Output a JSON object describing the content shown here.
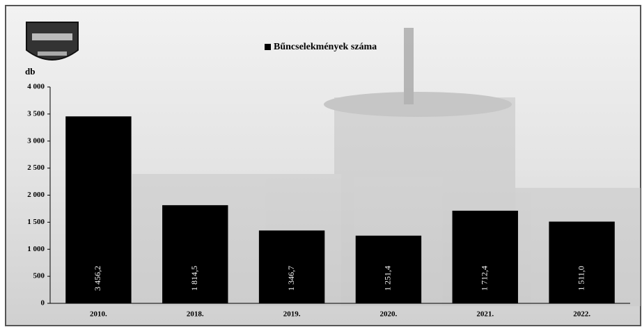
{
  "chart_data": {
    "type": "bar",
    "y_label": "db",
    "categories": [
      "2010.",
      "2018.",
      "2019.",
      "2020.",
      "2021.",
      "2022."
    ],
    "series": [
      {
        "name": "Bűncselekmények száma",
        "color": "#000000",
        "values": [
          3456.2,
          1814.5,
          1346.7,
          1251.4,
          1712.4,
          1511.0
        ],
        "value_labels": [
          "3 456,2",
          "1 814,5",
          "1 346,7",
          "1 251,4",
          "1 712,4",
          "1 511,0"
        ]
      }
    ],
    "ylim": [
      0,
      4000
    ],
    "yticks": [
      0,
      500,
      {
        "value": 1000,
        "label": "1 000"
      },
      {
        "value": 1500,
        "label": "1 500"
      },
      {
        "value": 2000,
        "label": "2 000"
      },
      {
        "value": 2500,
        "label": "2 500"
      },
      {
        "value": 3000,
        "label": "3 000"
      },
      {
        "value": 3500,
        "label": "3 500"
      },
      {
        "value": 4000,
        "label": "4 000"
      }
    ]
  }
}
